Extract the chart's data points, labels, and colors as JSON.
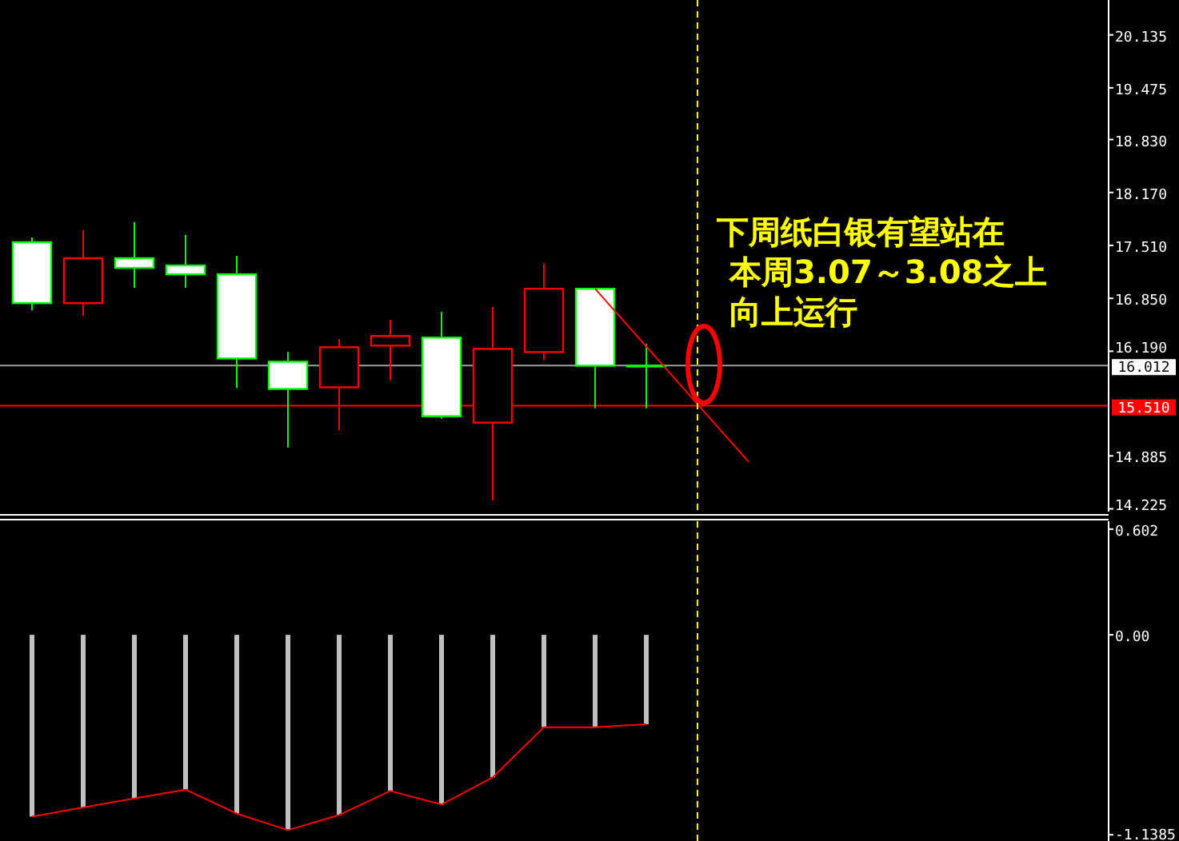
{
  "chart_data": [
    {
      "type": "candlestick",
      "categories": [
        null,
        null,
        null,
        null,
        null,
        null,
        null,
        null,
        null,
        null,
        null,
        null,
        null,
        null,
        null,
        null,
        null,
        null,
        null,
        null,
        null,
        null
      ],
      "ohlc": [
        [
          17.55,
          17.61,
          16.7,
          16.79
        ],
        [
          16.79,
          17.7,
          16.63,
          17.35
        ],
        [
          17.35,
          17.8,
          16.98,
          17.23
        ],
        [
          17.26,
          17.64,
          16.98,
          17.15
        ],
        [
          17.15,
          17.38,
          15.73,
          16.1
        ],
        [
          16.06,
          16.18,
          14.99,
          15.72
        ],
        [
          15.74,
          16.34,
          15.21,
          16.24
        ],
        [
          16.26,
          16.58,
          15.83,
          16.38
        ],
        [
          16.36,
          16.68,
          15.35,
          15.38
        ],
        [
          15.3,
          16.74,
          14.33,
          16.22
        ],
        [
          16.18,
          17.28,
          16.08,
          16.97
        ],
        [
          16.97,
          16.97,
          15.48,
          16.01
        ],
        [
          16.01,
          16.28,
          15.48,
          16.01
        ],
        null,
        null,
        null,
        null,
        null,
        null,
        null,
        null,
        null
      ],
      "colors": [
        "#00ff00",
        "#ff0000",
        "#00ff00",
        "#00ff00",
        "#00ff00",
        "#00ff00",
        "#ff0000",
        "#ff0000",
        "#00ff00",
        "#ff0000",
        "#ff0000",
        "#00ff00",
        "#00ff00",
        null,
        null,
        null,
        null,
        null,
        null,
        null,
        null,
        null
      ],
      "series": [
        {
          "type": "line",
          "values": [
            null,
            null,
            null,
            null,
            null,
            null,
            null,
            null,
            null,
            null,
            null,
            16.97,
            16.25,
            15.53,
            14.81,
            null,
            null,
            null,
            null,
            null,
            null,
            null
          ],
          "color": "#ff0000"
        }
      ],
      "ylim": [
        14.19,
        20.57
      ],
      "yticks": [
        {
          "value": 14.225,
          "label": "14.225"
        },
        {
          "value": 14.885,
          "label": "14.885"
        },
        {
          "value": 16.19,
          "label": "16.190"
        },
        {
          "value": 16.85,
          "label": "16.850"
        },
        {
          "value": 17.51,
          "label": "17.510"
        },
        {
          "value": 18.17,
          "label": "18.170"
        },
        {
          "value": 18.83,
          "label": "18.830"
        },
        {
          "value": 19.475,
          "label": "19.475"
        },
        {
          "value": 20.135,
          "label": "20.135"
        }
      ],
      "ref_lines": [
        {
          "axis": "y",
          "value": 16.012,
          "label": "16.012",
          "color": "#a0a0a0"
        },
        {
          "axis": "y",
          "value": 15.51,
          "label": "15.510",
          "color": "#ff0000"
        }
      ],
      "annotations": [
        "下周纸白银有望站在",
        "本周3.07～3.08之上",
        "向上运行"
      ]
    },
    {
      "type": "bar",
      "categories": [
        null,
        null,
        null,
        null,
        null,
        null,
        null,
        null,
        null,
        null,
        null,
        null,
        null,
        null,
        null,
        null,
        null,
        null,
        null,
        null,
        null,
        null
      ],
      "series": [
        {
          "type": "bar",
          "color": "#c0c0c0",
          "values": [
            -1.035,
            -0.983,
            -0.932,
            -0.881,
            -1.018,
            -1.112,
            -1.026,
            -0.889,
            -0.966,
            -0.812,
            -0.526,
            -0.526,
            -0.509,
            null,
            null,
            null,
            null,
            null,
            null,
            null,
            null,
            null
          ]
        },
        {
          "type": "line",
          "color": "#ff0000",
          "values": [
            -1.035,
            -0.983,
            -0.932,
            -0.881,
            -1.018,
            -1.112,
            -1.026,
            -0.889,
            -0.966,
            -0.812,
            -0.526,
            -0.526,
            -0.509,
            null,
            null,
            null,
            null,
            null,
            null,
            null,
            null,
            null
          ]
        }
      ],
      "ylim": [
        -1.174,
        0.647
      ],
      "yticks": [
        {
          "value": -1.1385,
          "label": "-1.1385"
        },
        {
          "value": 0,
          "label": "0.00"
        },
        {
          "value": 0.602,
          "label": "0.602"
        }
      ]
    }
  ]
}
